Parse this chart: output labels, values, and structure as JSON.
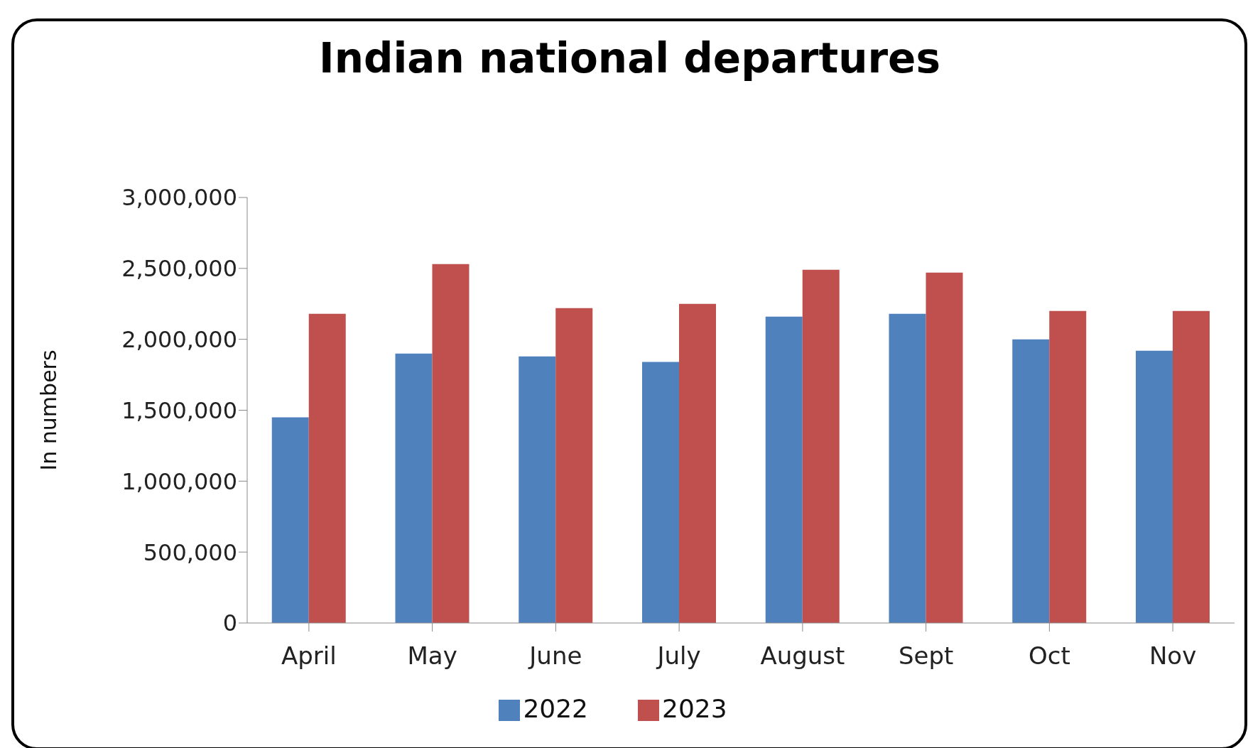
{
  "chart_data": {
    "type": "bar",
    "title": "Indian national departures",
    "ylabel": "In numbers",
    "categories": [
      "April",
      "May",
      "June",
      "July",
      "August",
      "Sept",
      "Oct",
      "Nov"
    ],
    "series": [
      {
        "name": "2022",
        "color": "#4f81bd",
        "values": [
          1450000,
          1900000,
          1880000,
          1840000,
          2160000,
          2180000,
          2000000,
          1920000
        ]
      },
      {
        "name": "2023",
        "color": "#c0504d",
        "values": [
          2180000,
          2530000,
          2220000,
          2250000,
          2490000,
          2470000,
          2200000,
          2200000
        ]
      }
    ],
    "ylim": [
      0,
      3000000
    ],
    "yticks": [
      0,
      {
        "value": 500000,
        "label": "500,000"
      },
      {
        "value": 1000000,
        "label": "1,000,000"
      },
      {
        "value": 1500000,
        "label": "1,500,000"
      },
      {
        "value": 2000000,
        "label": "2,000,000"
      },
      {
        "value": 2500000,
        "label": "2,500,000"
      },
      {
        "value": 3000000,
        "label": "3,000,000"
      }
    ],
    "grid": false,
    "legend": "bottom"
  }
}
